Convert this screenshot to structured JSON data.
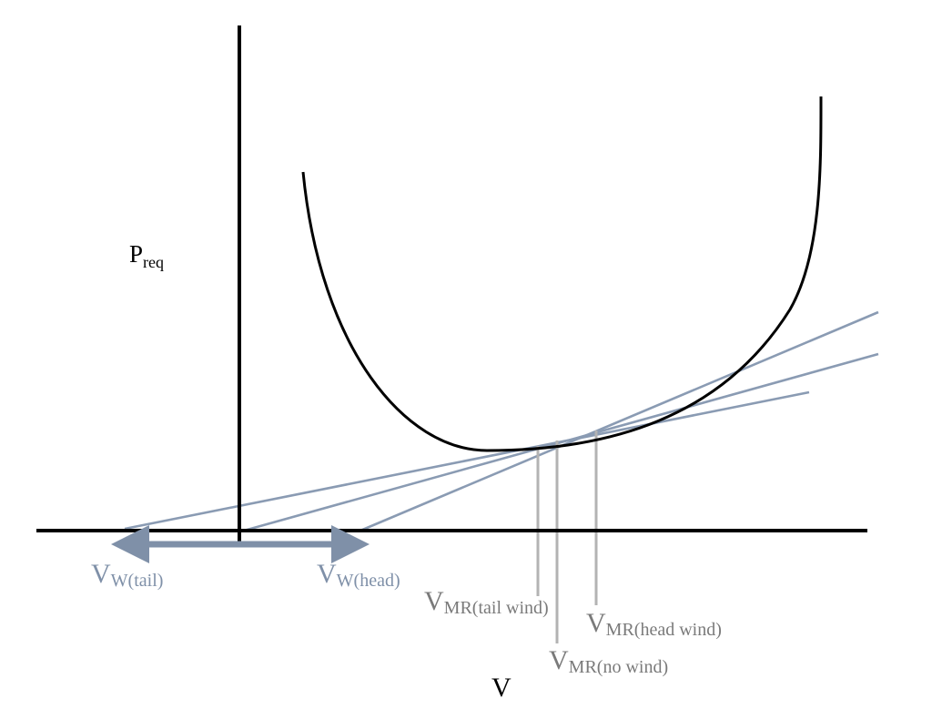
{
  "diagram": {
    "colors": {
      "axis": "#000000",
      "curve": "#000000",
      "tangent": "#8a9bb3",
      "arrow": "#7f90a8",
      "drop": "#b3b3b3",
      "vw_label": "#7f90a8",
      "vmr_label": "#7a7a7a"
    },
    "y_axis_label": {
      "main": "P",
      "sub": "req"
    },
    "x_axis_label": "V",
    "wind_labels": {
      "tail": {
        "main": "V",
        "sub": "W(tail)"
      },
      "head": {
        "main": "V",
        "sub": "W(head)"
      }
    },
    "vmr_labels": {
      "tail": {
        "main": "V",
        "sub": "MR(tail wind)"
      },
      "none": {
        "main": "V",
        "sub": "MR(no wind)"
      },
      "head": {
        "main": "V",
        "sub": "MR(head wind)"
      }
    },
    "arrow_style": "double-headed"
  }
}
